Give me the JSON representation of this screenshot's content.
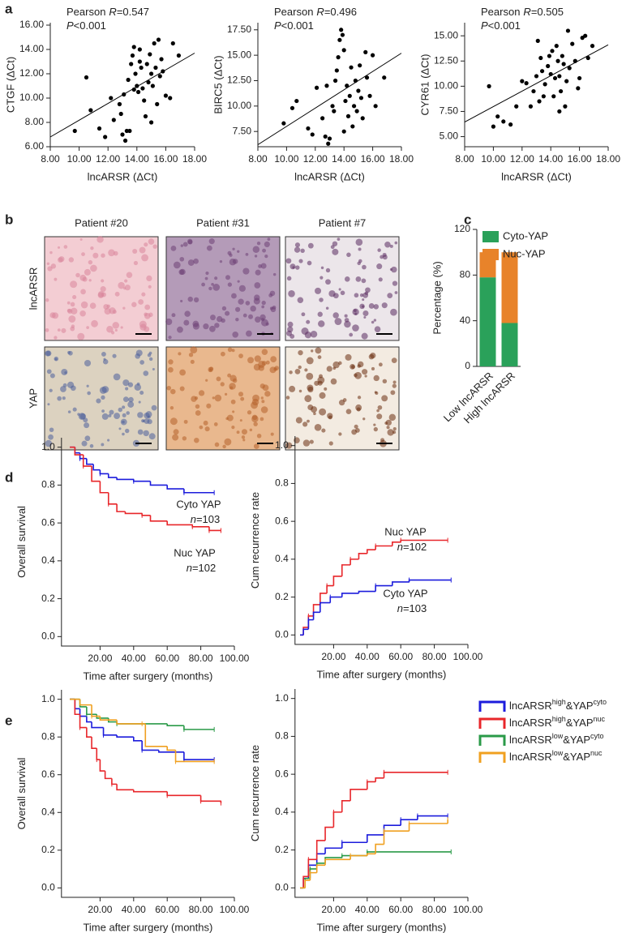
{
  "panel_labels": [
    "a",
    "b",
    "c",
    "d",
    "e"
  ],
  "images": {
    "columns": [
      "Patient #20",
      "Patient #31",
      "Patient #7"
    ],
    "rows": [
      "lncARSR",
      "YAP"
    ]
  },
  "chart_data": [
    {
      "type": "scatter",
      "x_label": "lncARSR (ΔCt)",
      "y_label": "CTGF (ΔCt)",
      "color": "#000000",
      "annotations": [
        [
          "Pearson",
          "R",
          "=0.547"
        ],
        [
          "",
          "P",
          "<0.001"
        ]
      ],
      "xlim": [
        8,
        18
      ],
      "xticks": [
        {
          "value": 8,
          "label": "8.00"
        },
        {
          "value": 10,
          "label": "10.00"
        },
        {
          "value": 12,
          "label": "12.00"
        },
        {
          "value": 14,
          "label": "14.00"
        },
        {
          "value": 16,
          "label": "16.00"
        },
        {
          "value": 18,
          "label": "18.00"
        }
      ],
      "ylim": [
        6,
        16.2
      ],
      "yticks": [
        {
          "value": 6,
          "label": "6.00"
        },
        {
          "value": 8,
          "label": "8.00"
        },
        {
          "value": 10,
          "label": "10.00"
        },
        {
          "value": 12,
          "label": "12.00"
        },
        {
          "value": 14,
          "label": "14.00"
        },
        {
          "value": 16,
          "label": "16.00"
        }
      ],
      "x": [
        9.7,
        10.5,
        10.8,
        11.4,
        11.8,
        12.2,
        12.4,
        12.8,
        12.9,
        13.0,
        13.1,
        13.2,
        13.3,
        13.5,
        13.4,
        13.6,
        13.7,
        13.8,
        13.9,
        14.0,
        14.1,
        14.2,
        14.3,
        14.4,
        14.5,
        14.6,
        14.7,
        14.8,
        14.9,
        15.0,
        15.1,
        15.2,
        15.3,
        15.4,
        15.5,
        15.6,
        15.7,
        15.8,
        16.0,
        16.3,
        16.5,
        16.9,
        14.2,
        13.8,
        15.0
      ],
      "values": [
        7.3,
        11.7,
        9.0,
        7.5,
        6.8,
        10.0,
        8.2,
        9.5,
        8.7,
        7.0,
        10.3,
        6.5,
        7.3,
        7.3,
        11.5,
        12.8,
        13.5,
        14.2,
        12.0,
        11.0,
        10.5,
        13.0,
        12.5,
        10.8,
        9.8,
        8.5,
        12.8,
        11.3,
        13.6,
        12.0,
        11.0,
        14.5,
        12.5,
        9.5,
        14.8,
        11.8,
        13.2,
        12.2,
        10.2,
        10.0,
        14.5,
        13.5,
        14.0,
        10.7,
        8.0
      ],
      "fit_line": {
        "x": [
          8,
          18
        ],
        "values": [
          6.8,
          13.7
        ]
      }
    },
    {
      "type": "scatter",
      "x_label": "lncARSR (ΔCt)",
      "y_label": "BIRC5 (ΔCt)",
      "color": "#000000",
      "annotations": [
        [
          "Pearson",
          "R",
          "=0.496"
        ],
        [
          "",
          "P",
          "<0.001"
        ]
      ],
      "xlim": [
        8,
        18
      ],
      "xticks": [
        {
          "value": 8,
          "label": "8.00"
        },
        {
          "value": 10,
          "label": "10.00"
        },
        {
          "value": 12,
          "label": "12.00"
        },
        {
          "value": 14,
          "label": "14.00"
        },
        {
          "value": 16,
          "label": "16.00"
        },
        {
          "value": 18,
          "label": "18.00"
        }
      ],
      "ylim": [
        6,
        18.2
      ],
      "yticks": [
        {
          "value": 7.5,
          "label": "7.50"
        },
        {
          "value": 10,
          "label": "10.00"
        },
        {
          "value": 12.5,
          "label": "12.50"
        },
        {
          "value": 15,
          "label": "15.00"
        },
        {
          "value": 17.5,
          "label": "17.50"
        }
      ],
      "x": [
        9.8,
        10.4,
        10.7,
        11.5,
        11.8,
        12.1,
        12.5,
        12.7,
        12.9,
        13.0,
        13.2,
        13.3,
        13.4,
        13.5,
        13.6,
        13.7,
        13.8,
        13.9,
        14.0,
        14.1,
        14.2,
        14.3,
        14.4,
        14.5,
        14.6,
        14.7,
        14.8,
        14.9,
        15.0,
        15.1,
        15.2,
        15.3,
        15.5,
        15.6,
        15.8,
        16.0,
        16.2,
        16.8,
        12.8,
        14.0
      ],
      "values": [
        8.3,
        9.8,
        10.5,
        7.8,
        7.2,
        11.8,
        8.8,
        7.0,
        6.3,
        6.8,
        10.0,
        9.5,
        12.5,
        13.5,
        14.8,
        16.5,
        17.5,
        17.0,
        15.5,
        10.5,
        12.0,
        9.0,
        11.0,
        13.8,
        8.0,
        10.0,
        12.5,
        9.5,
        11.5,
        14.0,
        10.8,
        8.8,
        15.3,
        12.8,
        11.0,
        15.0,
        10.0,
        12.8,
        12.0,
        7.5
      ],
      "fit_line": {
        "x": [
          8,
          18
        ],
        "values": [
          6.2,
          15.2
        ]
      }
    },
    {
      "type": "scatter",
      "x_label": "lncARSR (ΔCt)",
      "y_label": "CYR61 (ΔCt)",
      "color": "#000000",
      "annotations": [
        [
          "Pearson",
          "R",
          "=0.505"
        ],
        [
          "",
          "P",
          "<0.001"
        ]
      ],
      "xlim": [
        8,
        18
      ],
      "xticks": [
        {
          "value": 8,
          "label": "8.00"
        },
        {
          "value": 10,
          "label": "10.00"
        },
        {
          "value": 12,
          "label": "12.00"
        },
        {
          "value": 14,
          "label": "14.00"
        },
        {
          "value": 16,
          "label": "16.00"
        },
        {
          "value": 18,
          "label": "18.00"
        }
      ],
      "ylim": [
        4,
        16.3
      ],
      "yticks": [
        {
          "value": 5,
          "label": "5.00"
        },
        {
          "value": 7.5,
          "label": "7.50"
        },
        {
          "value": 10,
          "label": "10.00"
        },
        {
          "value": 12.5,
          "label": "12.50"
        },
        {
          "value": 15,
          "label": "15.00"
        }
      ],
      "x": [
        9.7,
        10.0,
        10.3,
        10.7,
        11.2,
        11.6,
        12.0,
        12.3,
        12.6,
        12.8,
        13.0,
        13.1,
        13.3,
        13.4,
        13.5,
        13.6,
        13.8,
        13.9,
        14.0,
        14.1,
        14.2,
        14.3,
        14.4,
        14.5,
        14.6,
        14.7,
        14.8,
        14.9,
        15.0,
        15.1,
        15.2,
        15.3,
        15.5,
        15.7,
        15.9,
        16.0,
        16.2,
        16.4,
        16.6,
        16.9,
        13.2,
        14.6
      ],
      "values": [
        10.0,
        6.0,
        7.0,
        6.5,
        6.2,
        8.0,
        10.5,
        10.3,
        8.0,
        9.5,
        11.0,
        14.5,
        12.8,
        11.5,
        9.0,
        10.2,
        12.0,
        13.0,
        11.2,
        13.5,
        9.0,
        10.8,
        14.0,
        12.5,
        11.0,
        9.5,
        13.0,
        12.2,
        8.0,
        10.5,
        15.5,
        11.8,
        14.2,
        12.5,
        9.8,
        10.8,
        14.8,
        15.0,
        12.8,
        14.0,
        8.5,
        7.5
      ],
      "fit_line": {
        "x": [
          8,
          18
        ],
        "values": [
          6.45,
          14.1
        ]
      }
    },
    {
      "type": "stacked_bar",
      "y_label": "Percentage (%)",
      "categories": [
        "Low lncARSR",
        "High lncARSR"
      ],
      "series": [
        {
          "name": "Cyto-YAP",
          "color": "#2aa15a",
          "values": [
            78,
            38
          ]
        },
        {
          "name": "Nuc-YAP",
          "color": "#e8832a",
          "values": [
            22,
            62
          ]
        }
      ],
      "ylim": [
        0,
        120
      ],
      "yticks": [
        0,
        40,
        80,
        120
      ],
      "legend": "top-left"
    },
    {
      "type": "step",
      "x_label": "Time after surgery (months)",
      "y_label": "Overall survival",
      "count_symbol": "n",
      "xlim": [
        -3,
        100
      ],
      "xticks": [
        {
          "value": 20,
          "label": "20.00"
        },
        {
          "value": 40,
          "label": "40.00"
        },
        {
          "value": 60,
          "label": "60.00"
        },
        {
          "value": 80,
          "label": "80.00"
        },
        {
          "value": 100,
          "label": "100.00"
        }
      ],
      "ylim": [
        -0.05,
        1.05
      ],
      "yticks": [
        {
          "value": 0,
          "label": "0.0"
        },
        0.2,
        0.4,
        0.6,
        0.8,
        {
          "value": 1,
          "label": "1.0"
        }
      ],
      "series": [
        {
          "name": "Cyto YAP",
          "count_text": "=103",
          "color": "#1c1cdc",
          "x": [
            2,
            5,
            8,
            12,
            16,
            20,
            25,
            30,
            40,
            50,
            60,
            70,
            88
          ],
          "values": [
            1,
            0.97,
            0.94,
            0.91,
            0.88,
            0.86,
            0.84,
            0.83,
            0.82,
            0.8,
            0.78,
            0.76,
            0.76
          ]
        },
        {
          "name": "Nuc YAP",
          "count_text": "=102",
          "color": "#e8262a",
          "x": [
            2,
            5,
            10,
            15,
            20,
            25,
            30,
            35,
            45,
            50,
            60,
            75,
            85,
            92
          ],
          "values": [
            1,
            0.96,
            0.9,
            0.82,
            0.76,
            0.7,
            0.66,
            0.65,
            0.64,
            0.61,
            0.59,
            0.58,
            0.56,
            0.56
          ]
        }
      ]
    },
    {
      "type": "step",
      "x_label": "Time after surgery (months)",
      "y_label": "Cum recurrence rate",
      "count_symbol": "n",
      "xlim": [
        -3,
        100
      ],
      "xticks": [
        {
          "value": 20,
          "label": "20.00"
        },
        {
          "value": 40,
          "label": "40.00"
        },
        {
          "value": 60,
          "label": "60.00"
        },
        {
          "value": 80,
          "label": "80.00"
        },
        {
          "value": 100,
          "label": "100.00"
        }
      ],
      "ylim": [
        -0.05,
        1.05
      ],
      "yticks": [
        {
          "value": 0,
          "label": "0.0"
        },
        0.2,
        0.4,
        0.6,
        0.8,
        {
          "value": 1,
          "label": "1.0"
        }
      ],
      "series": [
        {
          "name": "Nuc YAP",
          "count_text": "=102",
          "color": "#e8262a",
          "x": [
            0,
            2,
            5,
            8,
            12,
            16,
            20,
            25,
            30,
            35,
            40,
            45,
            55,
            60,
            88
          ],
          "values": [
            0,
            0.04,
            0.1,
            0.16,
            0.22,
            0.26,
            0.31,
            0.37,
            0.4,
            0.43,
            0.45,
            0.47,
            0.49,
            0.5,
            0.5
          ]
        },
        {
          "name": "Cyto YAP",
          "count_text": "=103",
          "color": "#1c1cdc",
          "x": [
            0,
            2,
            5,
            8,
            12,
            18,
            25,
            35,
            45,
            55,
            65,
            90
          ],
          "values": [
            0,
            0.03,
            0.08,
            0.12,
            0.17,
            0.2,
            0.22,
            0.23,
            0.26,
            0.28,
            0.29,
            0.29
          ]
        }
      ]
    },
    {
      "type": "step",
      "x_label": "Time after surgery (months)",
      "y_label": "Overall survival",
      "xlim": [
        -3,
        100
      ],
      "xticks": [
        {
          "value": 20,
          "label": "20.00"
        },
        {
          "value": 40,
          "label": "40.00"
        },
        {
          "value": 60,
          "label": "60.00"
        },
        {
          "value": 80,
          "label": "80.00"
        },
        {
          "value": 100,
          "label": "100.00"
        }
      ],
      "ylim": [
        -0.05,
        1.05
      ],
      "yticks": [
        {
          "value": 0,
          "label": "0.0"
        },
        0.2,
        0.4,
        0.6,
        0.8,
        {
          "value": 1,
          "label": "1.0"
        }
      ],
      "series": [
        {
          "color": "#1c1cdc",
          "x": [
            2,
            5,
            8,
            12,
            15,
            22,
            30,
            40,
            45,
            55,
            70,
            88
          ],
          "values": [
            1,
            0.95,
            0.91,
            0.88,
            0.85,
            0.81,
            0.8,
            0.78,
            0.73,
            0.72,
            0.68,
            0.68
          ]
        },
        {
          "color": "#e8262a",
          "x": [
            2,
            5,
            8,
            12,
            15,
            18,
            20,
            23,
            27,
            30,
            40,
            60,
            80,
            92
          ],
          "values": [
            1,
            0.92,
            0.85,
            0.8,
            0.74,
            0.68,
            0.62,
            0.58,
            0.55,
            0.52,
            0.51,
            0.49,
            0.46,
            0.45
          ]
        },
        {
          "color": "#2a9a48",
          "x": [
            2,
            8,
            12,
            18,
            25,
            30,
            50,
            60,
            70,
            88
          ],
          "values": [
            1,
            0.96,
            0.92,
            0.9,
            0.88,
            0.87,
            0.87,
            0.86,
            0.84,
            0.84
          ]
        },
        {
          "color": "#f0a020",
          "x": [
            2,
            8,
            15,
            20,
            30,
            45,
            47,
            60,
            65,
            88
          ],
          "values": [
            1,
            0.97,
            0.91,
            0.89,
            0.87,
            0.87,
            0.75,
            0.73,
            0.67,
            0.67
          ]
        }
      ]
    },
    {
      "type": "step",
      "x_label": "Time after surgery (months)",
      "y_label": "Cum recurrence rate",
      "legend": "right",
      "xlim": [
        -3,
        100
      ],
      "xticks": [
        {
          "value": 20,
          "label": "20.00"
        },
        {
          "value": 40,
          "label": "40.00"
        },
        {
          "value": 60,
          "label": "60.00"
        },
        {
          "value": 80,
          "label": "80.00"
        },
        {
          "value": 100,
          "label": "100.00"
        }
      ],
      "ylim": [
        -0.05,
        1.05
      ],
      "yticks": [
        {
          "value": 0,
          "label": "0.0"
        },
        0.2,
        0.4,
        0.6,
        0.8,
        {
          "value": 1,
          "label": "1.0"
        }
      ],
      "series": [
        {
          "name": [
            "lncARSR",
            "high",
            "&YAP",
            "cyto"
          ],
          "color": "#1c1cdc",
          "x": [
            0,
            2,
            5,
            10,
            15,
            25,
            40,
            50,
            60,
            70,
            88
          ],
          "values": [
            0,
            0.05,
            0.12,
            0.18,
            0.21,
            0.24,
            0.28,
            0.33,
            0.36,
            0.38,
            0.38
          ]
        },
        {
          "name": [
            "lncARSR",
            "high",
            "&YAP",
            "nuc"
          ],
          "color": "#e8262a",
          "x": [
            0,
            2,
            5,
            10,
            15,
            20,
            25,
            30,
            40,
            45,
            50,
            88
          ],
          "values": [
            0,
            0.06,
            0.15,
            0.25,
            0.32,
            0.4,
            0.46,
            0.52,
            0.56,
            0.58,
            0.61,
            0.61
          ]
        },
        {
          "name": [
            "lncARSR",
            "low",
            "&YAP",
            "cyto"
          ],
          "color": "#2a9a48",
          "x": [
            0,
            3,
            6,
            10,
            15,
            25,
            40,
            90
          ],
          "values": [
            0,
            0.05,
            0.1,
            0.13,
            0.16,
            0.17,
            0.19,
            0.19
          ]
        },
        {
          "name": [
            "lncARSR",
            "low",
            "&YAP",
            "nuc"
          ],
          "color": "#f0a020",
          "x": [
            0,
            3,
            6,
            10,
            15,
            30,
            40,
            45,
            50,
            65,
            88
          ],
          "values": [
            0,
            0.04,
            0.08,
            0.12,
            0.15,
            0.17,
            0.18,
            0.23,
            0.3,
            0.34,
            0.36
          ]
        }
      ]
    }
  ]
}
